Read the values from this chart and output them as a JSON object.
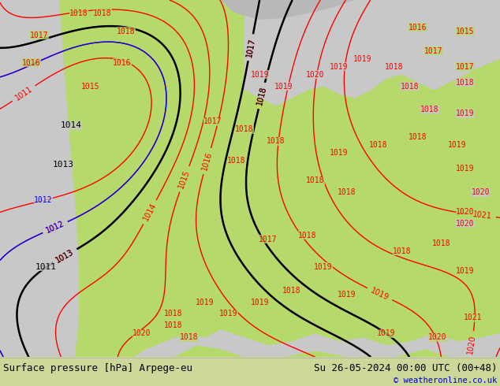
{
  "title_left": "Surface pressure [hPa] Arpege-eu",
  "title_right": "Su 26-05-2024 00:00 UTC (00+48)",
  "copyright": "© weatheronline.co.uk",
  "bg_color_land_green": "#b5d96b",
  "bg_color_gray": "#c8c8c8",
  "bg_color_sea": "#d0d0d0",
  "contour_color_red": "#ff0000",
  "contour_color_black": "#000000",
  "contour_color_blue": "#0000ff",
  "figure_bg": "#ffffff",
  "bottom_bar_color": "#ccd89a",
  "figsize": [
    6.34,
    4.9
  ],
  "dpi": 100,
  "label_fontsize": 7,
  "title_fontsize": 9,
  "copyright_fontsize": 7.5,
  "labels_red": [
    [
      60,
      115,
      "1011"
    ],
    [
      55,
      205,
      "1012"
    ],
    [
      75,
      245,
      "1013"
    ],
    [
      90,
      295,
      "1014"
    ],
    [
      115,
      345,
      "1015"
    ],
    [
      40,
      370,
      "1016"
    ],
    [
      155,
      380,
      "1016"
    ],
    [
      50,
      410,
      "1017"
    ],
    [
      75,
      425,
      "1017"
    ],
    [
      100,
      438,
      "1018"
    ],
    [
      130,
      438,
      "1018"
    ],
    [
      160,
      415,
      "1018"
    ],
    [
      180,
      435,
      "1020"
    ],
    [
      220,
      60,
      "1017"
    ],
    [
      240,
      80,
      "1018"
    ],
    [
      240,
      100,
      "1018"
    ],
    [
      270,
      85,
      "1019"
    ],
    [
      280,
      40,
      "1019"
    ],
    [
      310,
      50,
      "1019"
    ],
    [
      340,
      35,
      "1020"
    ],
    [
      400,
      55,
      "1018"
    ],
    [
      430,
      65,
      "1019"
    ],
    [
      460,
      55,
      "1019"
    ],
    [
      500,
      65,
      "1017"
    ],
    [
      540,
      50,
      "1017"
    ],
    [
      580,
      80,
      "1016"
    ],
    [
      590,
      135,
      "1015"
    ],
    [
      580,
      195,
      "1018"
    ],
    [
      570,
      230,
      "1018"
    ],
    [
      590,
      295,
      "1019"
    ],
    [
      575,
      340,
      "1019"
    ],
    [
      590,
      385,
      "1017"
    ],
    [
      540,
      390,
      "1017"
    ],
    [
      590,
      415,
      "1015"
    ],
    [
      540,
      420,
      "1016"
    ],
    [
      560,
      175,
      "1018"
    ],
    [
      510,
      130,
      "1018"
    ],
    [
      480,
      115,
      "1019"
    ],
    [
      530,
      430,
      "1019"
    ],
    [
      445,
      160,
      "1019"
    ],
    [
      420,
      245,
      "1018"
    ],
    [
      540,
      260,
      "1020"
    ],
    [
      600,
      35,
      "1021"
    ],
    [
      560,
      20,
      "1020"
    ],
    [
      490,
      20,
      "1019"
    ]
  ],
  "labels_black": [
    [
      80,
      215,
      "1013"
    ],
    [
      265,
      225,
      "1017"
    ],
    [
      310,
      175,
      "1015"
    ],
    [
      310,
      185,
      "1018"
    ],
    [
      415,
      200,
      "1019"
    ]
  ],
  "labels_blue": [
    [
      55,
      205,
      "1012"
    ]
  ]
}
